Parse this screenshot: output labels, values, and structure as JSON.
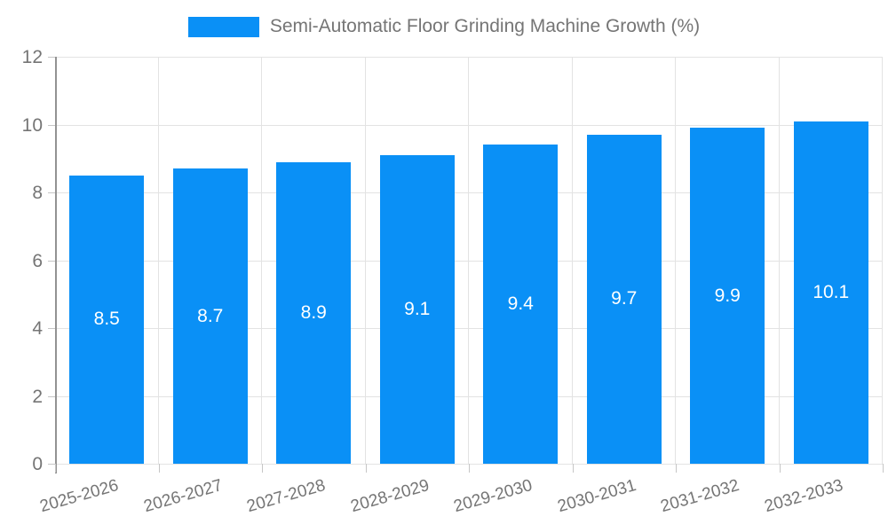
{
  "chart_data": {
    "type": "bar",
    "title": "Semi-Automatic Floor Grinding Machine Growth (%)",
    "categories": [
      "2025-2026",
      "2026-2027",
      "2027-2028",
      "2028-2029",
      "2029-2030",
      "2030-2031",
      "2031-2032",
      "2032-2033"
    ],
    "values": [
      8.5,
      8.7,
      8.9,
      9.1,
      9.4,
      9.7,
      9.9,
      10.1
    ],
    "value_labels": [
      "8.5",
      "8.7",
      "8.9",
      "9.1",
      "9.4",
      "9.7",
      "9.9",
      "10.1"
    ],
    "xlabel": "",
    "ylabel": "",
    "ylim": [
      0,
      12
    ],
    "yticks": [
      0,
      2,
      4,
      6,
      8,
      10,
      12
    ],
    "grid": "both",
    "legend_position": "top",
    "colors": {
      "bar": "#0A90F6",
      "bar_value_text": "#ffffff",
      "axis_text": "#757575",
      "gridline": "#e3e3e3",
      "axis_line": "#929292",
      "tick": "#c6c6c6",
      "background": "#ffffff"
    }
  }
}
